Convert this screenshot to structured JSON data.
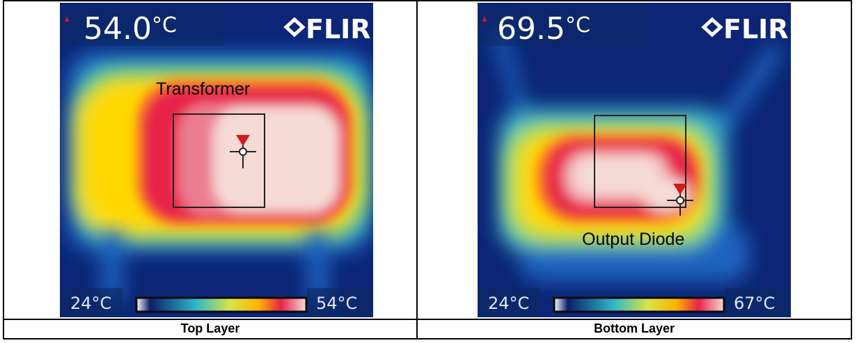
{
  "brand": "FLIR",
  "colors": {
    "palette_cold": "#0b1f6b",
    "palette_mid": "#2fb7c9",
    "palette_warm": "#ffd800",
    "palette_hot": "#e8244a",
    "palette_max": "#f6dad6",
    "marker": "#d41a1a"
  },
  "panels": [
    {
      "caption": "Top Layer",
      "spot_temp": "54.0",
      "spot_unit": "°C",
      "component_label": "Transformer",
      "scale_min": "24°C",
      "scale_max": "54°C"
    },
    {
      "caption": "Bottom Layer",
      "spot_temp": "69.5",
      "spot_unit": "°C",
      "component_label": "Output Diode",
      "scale_min": "24°C",
      "scale_max": "67°C"
    }
  ]
}
